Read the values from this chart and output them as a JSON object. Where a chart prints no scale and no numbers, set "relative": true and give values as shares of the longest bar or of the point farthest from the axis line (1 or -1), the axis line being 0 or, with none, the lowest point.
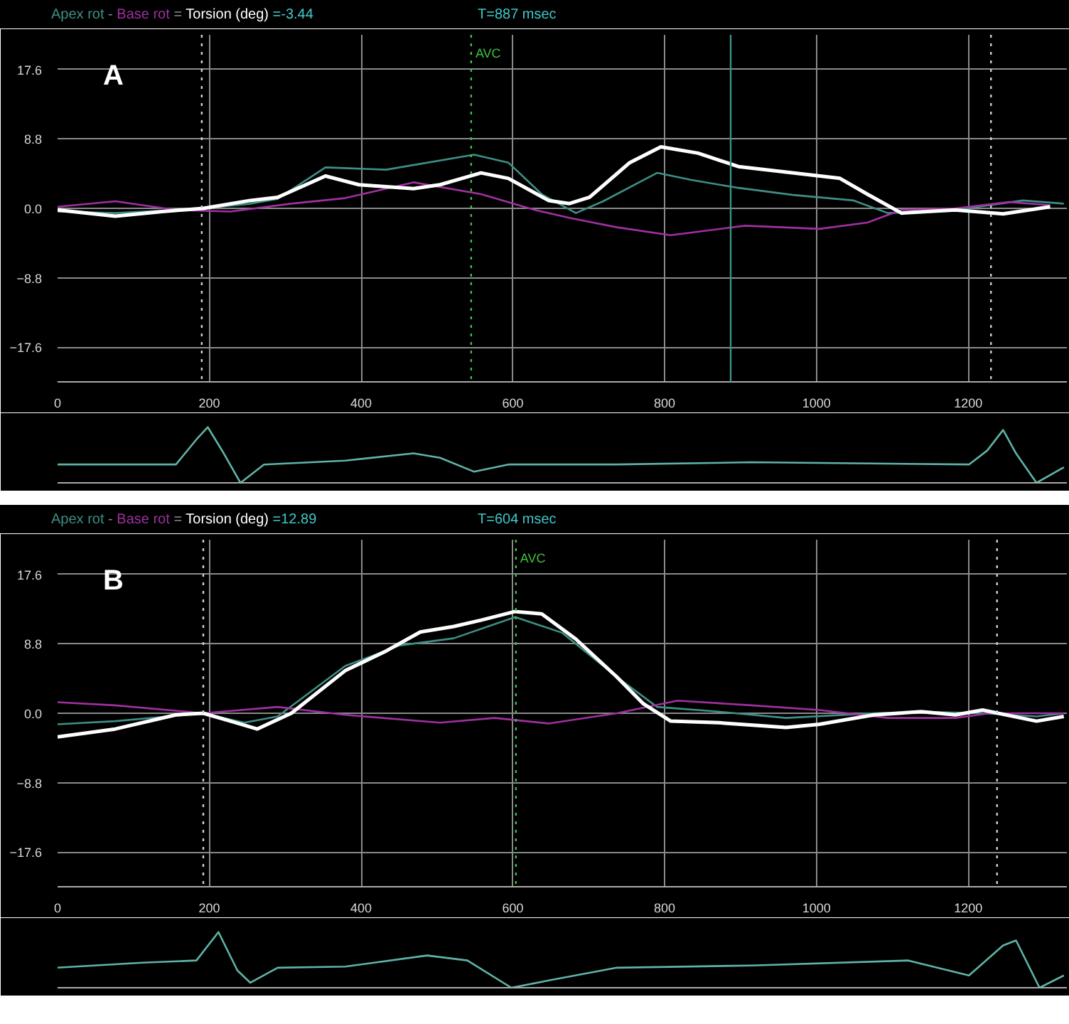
{
  "chart_data": [
    {
      "type": "line",
      "xlim": [
        0,
        1330
      ],
      "xticks": [
        0,
        200,
        400,
        600,
        800,
        1000,
        1200
      ],
      "ylim": [
        -22,
        22
      ],
      "yticks": [
        -17.6,
        -8.8,
        {
          "value": 0,
          "label": "0.0"
        },
        8.8,
        17.6
      ],
      "grid": true,
      "annotations": [
        "-",
        "=",
        "=-3.44",
        "T=887 msec",
        "A"
      ],
      "ref_lines": [
        {
          "axis": "x",
          "value": 190,
          "label": null,
          "color": "#d0d0d0",
          "line_style": "dotted"
        },
        {
          "axis": "x",
          "value": 545,
          "label": "AVC",
          "color": "#3fbf3f",
          "line_style": "dotted"
        },
        {
          "axis": "x",
          "value": 887,
          "label": null,
          "color": "#3e8f86",
          "line_style": "solid"
        },
        {
          "axis": "x",
          "value": 1230,
          "label": null,
          "color": "#d0d0d0",
          "line_style": "dotted"
        }
      ],
      "series": [
        {
          "name": "Apex rot",
          "color": "#3e8f86",
          "x": [
            0,
            76,
            156,
            192,
            254,
            290,
            353,
            433,
            549,
            594,
            638,
            683,
            719,
            790,
            835,
            897,
            969,
            1049,
            1094,
            1183,
            1272,
            1326
          ],
          "values": [
            -0.4,
            -0.6,
            -0.2,
            0,
            0.6,
            1.2,
            5.2,
            4.9,
            6.8,
            5.8,
            1.8,
            -0.6,
            0.9,
            4.5,
            3.6,
            2.6,
            1.7,
            1.0,
            -0.6,
            -0.2,
            1.0,
            0.6
          ]
        },
        {
          "name": "Base rot",
          "color": "#a030a0",
          "x": [
            0,
            76,
            156,
            228,
            308,
            379,
            469,
            558,
            629,
            674,
            737,
            808,
            906,
            1004,
            1067,
            1112,
            1183,
            1254,
            1308
          ],
          "values": [
            0.2,
            0.9,
            -0.2,
            -0.4,
            0.6,
            1.3,
            3.3,
            1.8,
            -0.2,
            -1.2,
            -2.4,
            -3.4,
            -2.2,
            -2.6,
            -1.8,
            -0.2,
            0,
            0.8,
            0.4
          ]
        },
        {
          "name": "Torsion (deg)",
          "color": "#ffffff",
          "x": [
            0,
            76,
            138,
            192,
            254,
            290,
            353,
            397,
            469,
            504,
            558,
            594,
            647,
            674,
            701,
            754,
            795,
            844,
            897,
            960,
            1031,
            1067,
            1112,
            1183,
            1246,
            1308
          ],
          "values": [
            -0.2,
            -1.0,
            -0.4,
            0,
            1.0,
            1.4,
            4.1,
            3.0,
            2.5,
            3.0,
            4.5,
            3.8,
            1.0,
            0.6,
            1.4,
            5.8,
            7.8,
            7.0,
            5.3,
            4.6,
            3.8,
            1.8,
            -0.6,
            -0.2,
            -0.7,
            0.2
          ]
        }
      ]
    },
    {
      "type": "line",
      "relative": true,
      "tick_labels": false,
      "grid": false,
      "xlim": [
        0,
        1330
      ],
      "series": [
        {
          "color": "#5fb3a8",
          "x": [
            0,
            156,
            183,
            198,
            219,
            241,
            272,
            379,
            469,
            504,
            549,
            594,
            737,
            915,
            1201,
            1225,
            1246,
            1263,
            1290,
            1326
          ],
          "values": [
            0.33,
            0.33,
            0.78,
            1.0,
            0.53,
            0,
            0.33,
            0.4,
            0.53,
            0.45,
            0.2,
            0.33,
            0.33,
            0.37,
            0.33,
            0.58,
            0.95,
            0.53,
            0,
            0.28
          ]
        }
      ]
    },
    {
      "type": "line",
      "xlim": [
        0,
        1330
      ],
      "xticks": [
        0,
        200,
        400,
        600,
        800,
        1000,
        1200
      ],
      "ylim": [
        -22,
        22
      ],
      "yticks": [
        -17.6,
        -8.8,
        {
          "value": 0,
          "label": "0.0"
        },
        8.8,
        17.6
      ],
      "grid": true,
      "annotations": [
        "-",
        "=",
        "=12.89",
        "T=604 msec",
        "B"
      ],
      "ref_lines": [
        {
          "axis": "x",
          "value": 192,
          "label": null,
          "color": "#d0d0d0",
          "line_style": "dotted"
        },
        {
          "axis": "x",
          "value": 604,
          "label": "AVC",
          "color": "#3fbf3f",
          "line_style": "dotted"
        },
        {
          "axis": "x",
          "value": 1238,
          "label": null,
          "color": "#d0d0d0",
          "line_style": "dotted"
        }
      ],
      "series": [
        {
          "name": "Apex rot",
          "color": "#3e8f86",
          "x": [
            0,
            76,
            192,
            246,
            290,
            379,
            451,
            522,
            603,
            665,
            737,
            790,
            871,
            960,
            1076,
            1138,
            1219,
            1290,
            1326
          ],
          "values": [
            -1.4,
            -1.0,
            0,
            -1.2,
            -0.4,
            6.0,
            8.6,
            9.5,
            12.2,
            10.2,
            4.6,
            0.8,
            0.2,
            -0.6,
            0,
            0.2,
            0,
            -0.4,
            0
          ]
        },
        {
          "name": "Base rot",
          "color": "#a030a0",
          "x": [
            0,
            76,
            192,
            290,
            379,
            504,
            576,
            647,
            737,
            817,
            915,
            1004,
            1094,
            1183,
            1228,
            1326
          ],
          "values": [
            1.4,
            1.0,
            0,
            0.8,
            -0.2,
            -1.2,
            -0.6,
            -1.3,
            0,
            1.6,
            1.0,
            0.4,
            -0.6,
            -0.6,
            0,
            0
          ]
        },
        {
          "name": "Torsion (deg)",
          "color": "#ffffff",
          "x": [
            0,
            76,
            156,
            192,
            228,
            263,
            308,
            379,
            433,
            478,
            522,
            558,
            603,
            638,
            683,
            737,
            772,
            808,
            871,
            960,
            1004,
            1076,
            1138,
            1183,
            1219,
            1290,
            1326
          ],
          "values": [
            -3.0,
            -2.0,
            -0.2,
            0,
            -1.0,
            -2.0,
            0,
            5.4,
            7.9,
            10.3,
            11.0,
            11.8,
            12.9,
            12.6,
            9.4,
            4.6,
            1.2,
            -1.0,
            -1.2,
            -1.8,
            -1.4,
            -0.2,
            0.2,
            -0.2,
            0.4,
            -1.0,
            -0.4
          ]
        }
      ]
    },
    {
      "type": "line",
      "relative": true,
      "tick_labels": false,
      "grid": false,
      "xlim": [
        0,
        1330
      ],
      "series": [
        {
          "color": "#5fb3a8",
          "x": [
            0,
            112,
            183,
            212,
            237,
            254,
            290,
            379,
            487,
            540,
            598,
            647,
            737,
            915,
            1121,
            1201,
            1246,
            1263,
            1294,
            1326
          ],
          "values": [
            0.36,
            0.45,
            0.49,
            1.0,
            0.31,
            0.09,
            0.36,
            0.38,
            0.58,
            0.49,
            0,
            0.13,
            0.36,
            0.4,
            0.49,
            0.22,
            0.76,
            0.85,
            0,
            0.22
          ]
        }
      ]
    }
  ]
}
